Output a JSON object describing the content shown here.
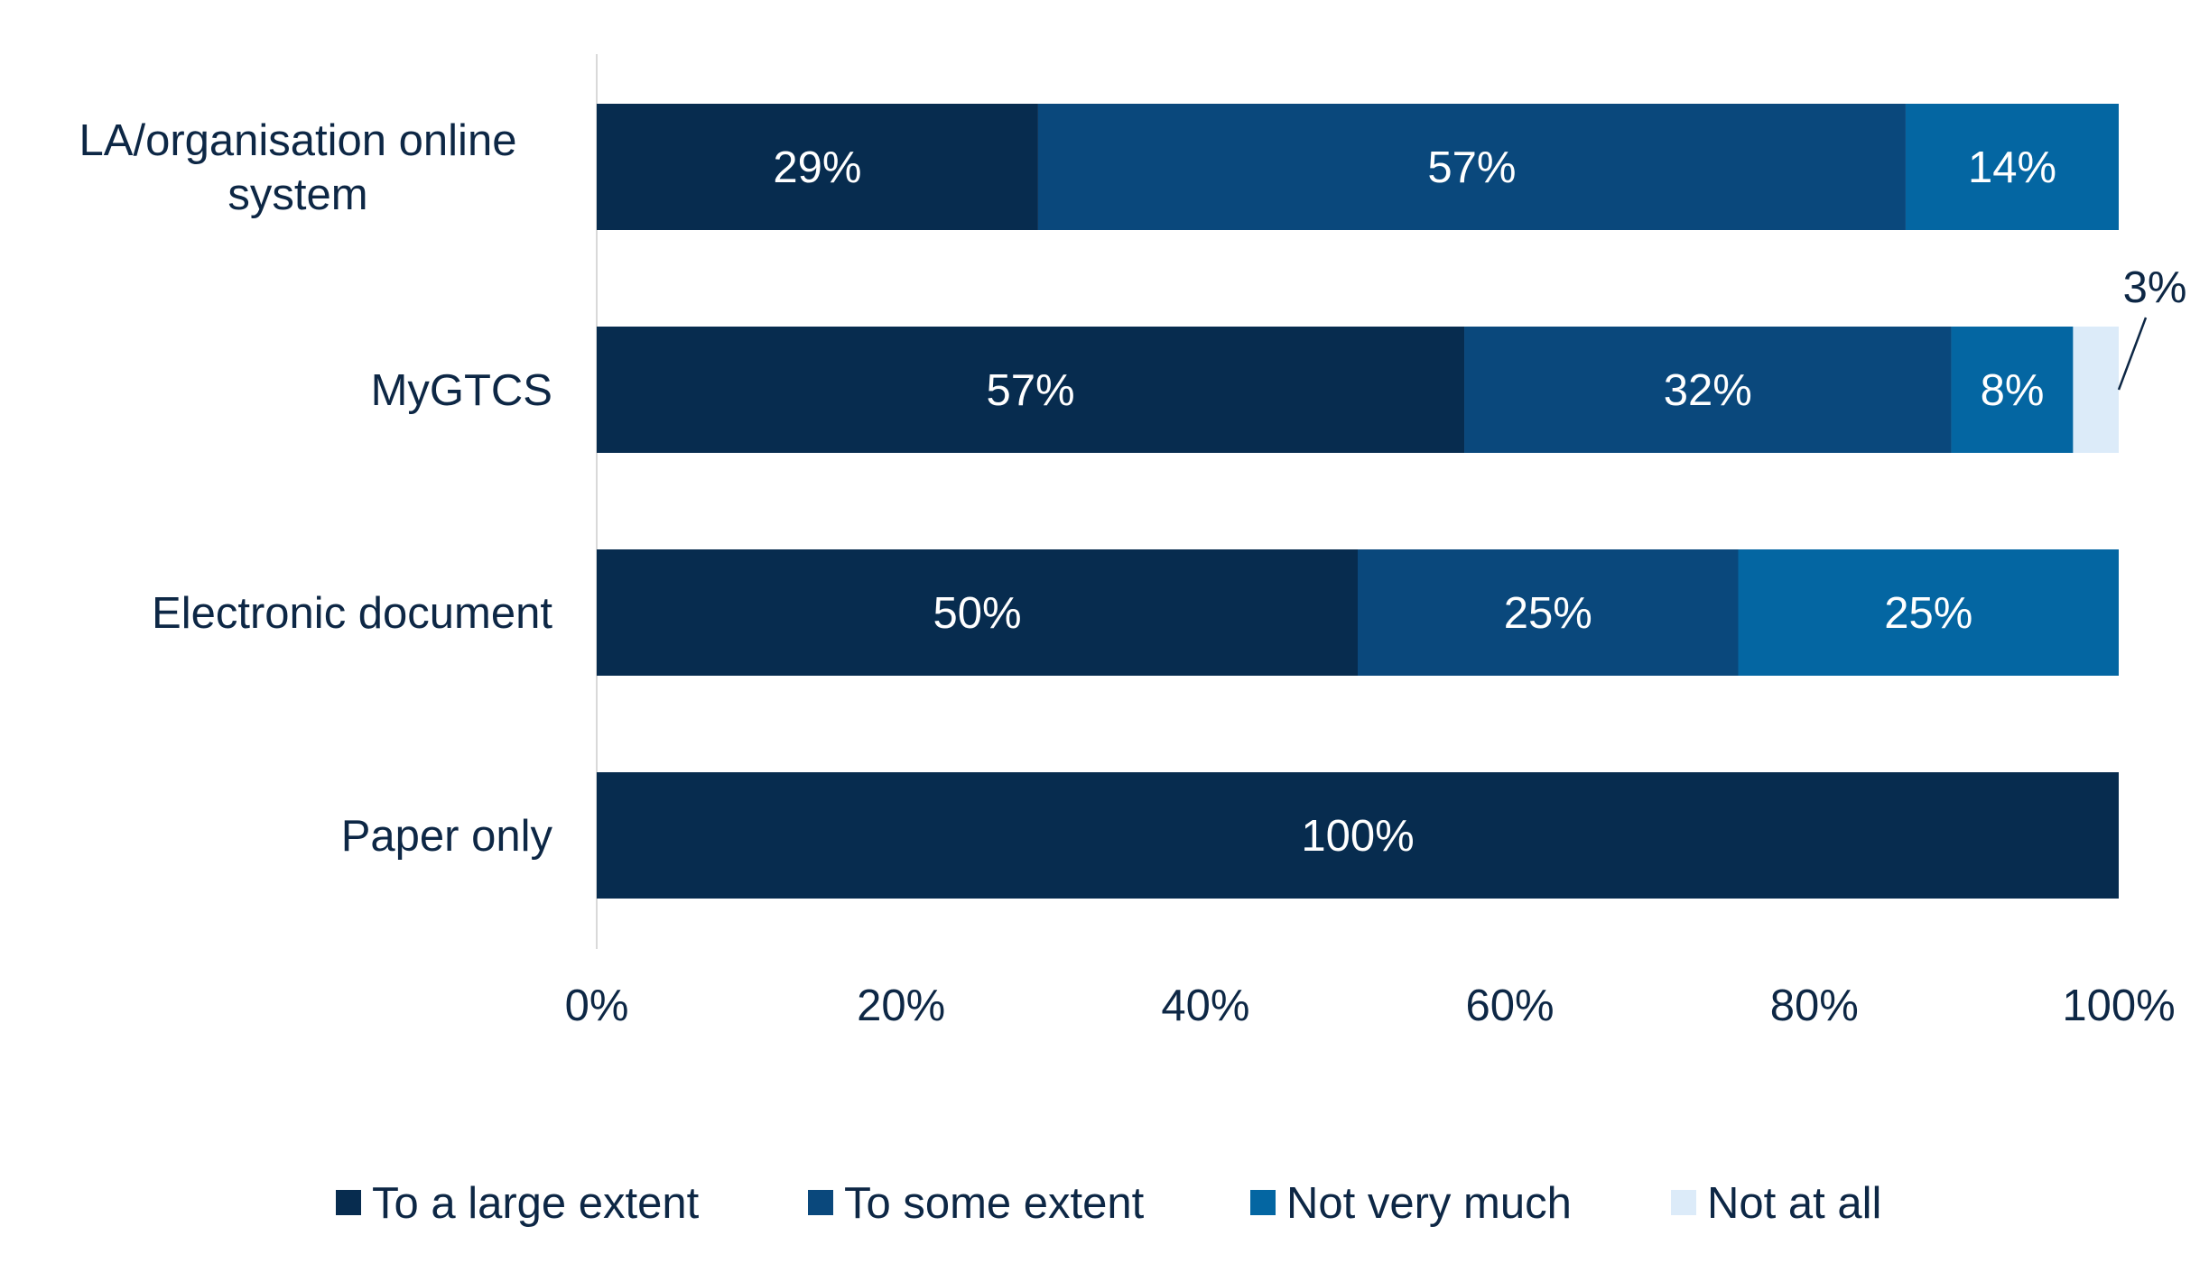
{
  "chart_data": {
    "type": "bar",
    "orientation": "horizontal",
    "stacked": true,
    "categories": [
      "LA/organisation online system",
      "MyGTCS",
      "Electronic document",
      "Paper only"
    ],
    "category_label_lines": [
      [
        "LA/organisation online",
        "system"
      ],
      [
        "MyGTCS"
      ],
      [
        "Electronic document"
      ],
      [
        "Paper only"
      ]
    ],
    "series": [
      {
        "name": "To a large extent",
        "color": "#072c4f",
        "values": [
          29,
          57,
          50,
          100
        ]
      },
      {
        "name": "To some extent",
        "color": "#0a487c",
        "values": [
          57,
          32,
          25,
          0
        ]
      },
      {
        "name": "Not very much",
        "color": "#0466a2",
        "values": [
          14,
          8,
          25,
          0
        ]
      },
      {
        "name": "Not at all",
        "color": "#dcebf9",
        "values": [
          0,
          3,
          0,
          0
        ]
      }
    ],
    "data_labels": [
      [
        "29%",
        "57%",
        "14%",
        ""
      ],
      [
        "57%",
        "32%",
        "8%",
        "3%"
      ],
      [
        "50%",
        "25%",
        "25%",
        ""
      ],
      [
        "100%",
        "",
        "",
        ""
      ]
    ],
    "xlim": [
      0,
      100
    ],
    "xticks": [
      "0%",
      "20%",
      "40%",
      "60%",
      "80%",
      "100%"
    ],
    "xtick_values": [
      0,
      20,
      40,
      60,
      80,
      100
    ],
    "grid": false,
    "legend_position": "bottom",
    "label_color_light": "#ffffff",
    "label_color_dark": "#0d2745",
    "title": "",
    "xlabel": "",
    "ylabel": ""
  }
}
